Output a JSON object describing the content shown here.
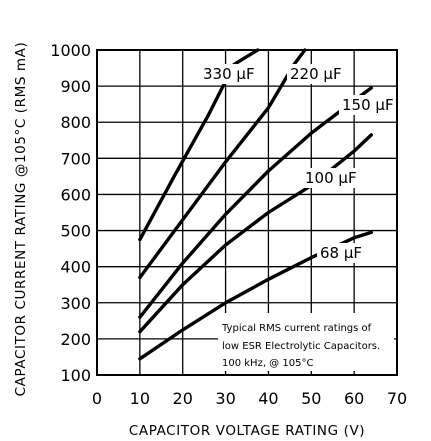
{
  "chart_data": {
    "type": "line",
    "xlabel": "CAPACITOR VOLTAGE RATING (V)",
    "ylabel": "CAPACITOR CURRENT RATING @105°C (RMS mA)",
    "xlim": [
      0,
      70
    ],
    "ylim": [
      100,
      1000
    ],
    "x_ticks": [
      0,
      10,
      20,
      30,
      40,
      50,
      60,
      70
    ],
    "y_ticks": [
      100,
      200,
      300,
      400,
      500,
      600,
      700,
      800,
      900,
      1000
    ],
    "grid": true,
    "series": [
      {
        "name": "330 µF",
        "x": [
          10,
          18,
          26,
          32,
          37.5
        ],
        "y": [
          475,
          650,
          820,
          960,
          1000
        ]
      },
      {
        "name": "220 µF",
        "x": [
          10,
          20,
          30,
          40,
          46,
          48.5
        ],
        "y": [
          370,
          530,
          690,
          840,
          960,
          1000
        ]
      },
      {
        "name": "150 µF",
        "x": [
          10,
          20,
          30,
          40,
          50,
          60,
          64
        ],
        "y": [
          260,
          410,
          545,
          665,
          770,
          860,
          895
        ]
      },
      {
        "name": "100 µF",
        "x": [
          10,
          20,
          30,
          40,
          50,
          60,
          64
        ],
        "y": [
          220,
          350,
          460,
          550,
          625,
          720,
          765
        ]
      },
      {
        "name": "68 µF",
        "x": [
          10,
          20,
          30,
          40,
          50,
          60,
          64
        ],
        "y": [
          145,
          225,
          300,
          365,
          425,
          480,
          495
        ]
      }
    ],
    "annotation": [
      "Typical RMS current ratings of",
      "low ESR Electrolytic Capacitors.",
      "100 kHz, @ 105°C"
    ]
  }
}
